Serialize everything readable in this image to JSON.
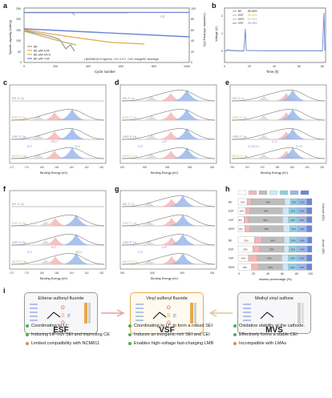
{
  "panel_labels": [
    "a",
    "b",
    "c",
    "d",
    "e",
    "f",
    "g",
    "h",
    "i"
  ],
  "panel_a": {
    "ylabel_left": "Specific capacity (mAh/g)",
    "ylabel_right": "Coulombic efficiency (%)",
    "xlabel": "Cycle number",
    "note": "Li|NCM811(3.5 mg/cm²) ; 3.0~4.3 V ; 0.5C charge/5C discharge",
    "legend": [
      "BE",
      "BE with ESF",
      "BE with MVS",
      "BE with VSF"
    ],
    "colors": {
      "BE": "#9a9a9a",
      "ESF": "#e8a94c",
      "MVS": "#c2b46a",
      "VSF": "#6b86d6"
    },
    "x_ticks": [
      "0",
      "200",
      "400",
      "600",
      "800",
      "1000"
    ],
    "y_ticks_left": [
      "0",
      "50",
      "100",
      "150",
      "200",
      "250"
    ],
    "y_ticks_right": [
      "0",
      "20",
      "40",
      "60",
      "80",
      "100"
    ],
    "ce_label": "CE"
  },
  "panel_b": {
    "ylabel": "Voltage (V)",
    "xlabel": "Time (h)",
    "x_ticks": [
      "0",
      "20",
      "40",
      "60",
      "80"
    ],
    "y_ticks": [
      "0",
      "1",
      "2"
    ],
    "legend": [
      {
        "name": "BE",
        "value": "86.48%"
      },
      {
        "name": "ESF",
        "value": "90.42%"
      },
      {
        "name": "MVS",
        "value": "94.45%"
      },
      {
        "name": "VSF",
        "value": "98.45%"
      }
    ]
  },
  "xps_xlabel": "Binding Energy (eV)",
  "panel_c": {
    "rows": [
      "BE-S 2p",
      "ESF-S 2p",
      "VSF-S 2p",
      "MVS-S 2p"
    ],
    "x_ticks": [
      "172",
      "170",
      "168",
      "166",
      "164",
      "162",
      "160"
    ],
    "peaks": [
      "S-F",
      "SO₃²⁻",
      "S-C"
    ]
  },
  "panel_d": {
    "rows": [
      "BE-F 1s",
      "ESF-F 1s",
      "VSF-F 1s",
      "MVS-F 1s"
    ],
    "x_ticks": [
      "692",
      "690",
      "688",
      "686",
      "684"
    ],
    "peaks": [
      "C-F",
      "Li-F"
    ]
  },
  "panel_e": {
    "rows": [
      "BE-C 1s",
      "ESF-C 1s",
      "VSF-C 1s",
      "MVS-C 1s"
    ],
    "x_ticks": [
      "294",
      "292",
      "290",
      "288",
      "286",
      "284",
      "282"
    ],
    "peaks": [
      "C-C/C-H",
      "C-O",
      "C=O"
    ]
  },
  "panel_f": {
    "rows": [
      "BE-S 2p",
      "ESF-S 2p",
      "VSF-S 2p",
      "MVS-S 2p"
    ],
    "x_ticks": [
      "172",
      "170",
      "168",
      "166",
      "164",
      "162",
      "160"
    ],
    "peaks": [
      "S-F",
      "S-C",
      "SO₃²⁻"
    ]
  },
  "panel_g": {
    "rows": [
      "BE-F 1s",
      "ESF-F 1s",
      "VSF-F 1s",
      "MVS-F 1s"
    ],
    "x_ticks": [
      "690",
      "688",
      "686",
      "684"
    ],
    "peaks": [
      "C-F",
      "Li-F"
    ]
  },
  "panel_h": {
    "xlabel": "Atomic percentage (%)",
    "side_labels": [
      "Cathode (CEI)",
      "Anode (SEI)"
    ],
    "rows_top": [
      "BE",
      "ESF",
      "VSF",
      "MVS"
    ],
    "rows_bottom": [
      "BE",
      "ESF",
      "VSF",
      "MVS"
    ],
    "x_ticks": [
      "0",
      "20",
      "40",
      "60",
      "80",
      "100"
    ],
    "legend_colors": [
      "#ffffff",
      "#f4b6b6",
      "#bdbdbd",
      "#cfe8f5",
      "#8fd0e0",
      "#9bb7ea",
      "#6b86d6"
    ],
    "segments": [
      {
        "values": [
          12,
          6,
          45,
          8,
          10,
          12,
          7
        ],
        "labels": [
          "12%",
          "",
          "45%",
          "",
          "10%",
          "12%",
          ""
        ]
      },
      {
        "values": [
          10,
          6,
          44,
          9,
          11,
          13,
          7
        ],
        "labels": [
          "10%",
          "",
          "44%",
          "",
          "11%",
          "13%",
          ""
        ]
      },
      {
        "values": [
          8,
          6,
          46,
          8,
          12,
          13,
          7
        ],
        "labels": [
          "8%",
          "",
          "46%",
          "",
          "12%",
          "13%",
          ""
        ]
      },
      {
        "values": [
          9,
          7,
          45,
          9,
          11,
          12,
          7
        ],
        "labels": [
          "9%",
          "",
          "45%",
          "",
          "11%",
          "12%",
          ""
        ]
      },
      {
        "values": [
          22,
          10,
          30,
          8,
          10,
          14,
          6
        ],
        "labels": [
          "22%",
          "",
          "30%",
          "",
          "10%",
          "14%",
          ""
        ]
      },
      {
        "values": [
          20,
          9,
          33,
          7,
          11,
          14,
          6
        ],
        "labels": [
          "20%",
          "",
          "33%",
          "",
          "11%",
          "14%",
          ""
        ]
      },
      {
        "values": [
          14,
          12,
          33,
          9,
          12,
          13,
          7
        ],
        "labels": [
          "14%",
          "",
          "33%",
          "",
          "12%",
          "13%",
          ""
        ]
      },
      {
        "values": [
          18,
          10,
          32,
          8,
          12,
          13,
          7
        ],
        "labels": [
          "18%",
          "",
          "32%",
          "",
          "12%",
          "13%",
          ""
        ]
      }
    ]
  },
  "panel_i": {
    "cards": [
      {
        "title": "Ethene sulfonyl fluoride",
        "name": "ESF"
      },
      {
        "title": "Vinyl sulfonyl fluoride",
        "name": "VSF"
      },
      {
        "title": "Methyl vinyl sulfone",
        "name": "MVS"
      }
    ],
    "bullets": [
      [
        {
          "text": "Coordinating to Li⁺",
          "color": "#4caf50"
        },
        {
          "text": "Inducing LiF-rich SEI and improving CE",
          "color": "#4caf50"
        },
        {
          "text": "Limited compatibility with NCM811",
          "color": "#e8834c"
        }
      ],
      [
        {
          "text": "Coordinating to Li⁺ to form a robust SEI",
          "color": "#4caf50"
        },
        {
          "text": "Induces an inorganic-rich SEI and CEI",
          "color": "#4caf50"
        },
        {
          "text": "Enables high-voltage fast-charging LMB",
          "color": "#4caf50"
        }
      ],
      [
        {
          "text": "Oxidative stability at the cathode.",
          "color": "#4caf50"
        },
        {
          "text": "Effectively forms a stable CEI",
          "color": "#4caf50"
        },
        {
          "text": "Incompatible with LMAs",
          "color": "#e8834c"
        }
      ]
    ]
  }
}
